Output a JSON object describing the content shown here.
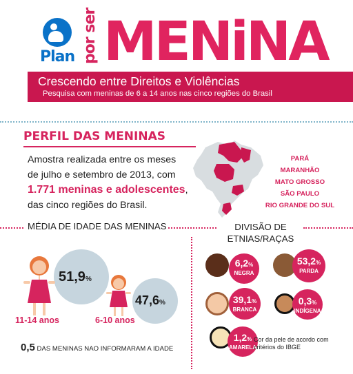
{
  "header": {
    "logo_text": "Plan",
    "por_ser": "por ser",
    "campaign_word": "MENiNA",
    "banner_title": "Crescendo entre Direitos e Violências",
    "banner_subtitle": "Pesquisa com meninas de 6 a 14 anos nas cinco regiões do Brasil"
  },
  "perfil": {
    "heading": "PERFIL DAS MENINAS",
    "line1": "Amostra realizada entre os meses",
    "line2": "de julho e setembro de 2013, com",
    "highlight": "1.771 meninas e adolescentes",
    "highlight_suffix": ",",
    "line4": "das cinco regiões do Brasil.",
    "states": [
      "PARÁ",
      "MARANHÃO",
      "MATO GROSSO",
      "SÃO PAULO",
      "RIO GRANDE DO SUL"
    ]
  },
  "idade": {
    "title": "MÉDIA DE IDADE DAS MENINAS",
    "groups": [
      {
        "value": "51,9",
        "unit": "%",
        "label": "11-14 anos"
      },
      {
        "value": "47,6",
        "unit": "%",
        "label": "6-10 anos"
      }
    ],
    "note_value": "0,5",
    "note_text": " DAS MENINAS NAO INFORMARAM A IDADE"
  },
  "etnias": {
    "title": "DIVISÃO DE ETNIAS/RAÇAS",
    "items": [
      {
        "value": "6,2",
        "unit": "%",
        "label": "NEGRA"
      },
      {
        "value": "53,2",
        "unit": "%",
        "label": "PARDA"
      },
      {
        "value": "39,1",
        "unit": "%",
        "label": "BRANCA"
      },
      {
        "value": "0,3",
        "unit": "%",
        "label": "INDÍGENA"
      },
      {
        "value": "1,2",
        "unit": "%",
        "label": "AMARELA"
      }
    ],
    "note": "Cor da pele de acordo com critérios do IBGE"
  },
  "colors": {
    "accent": "#d6245e",
    "banner": "#c9174f",
    "plan_blue": "#0a72c8",
    "bubble": "#c6d5de"
  }
}
